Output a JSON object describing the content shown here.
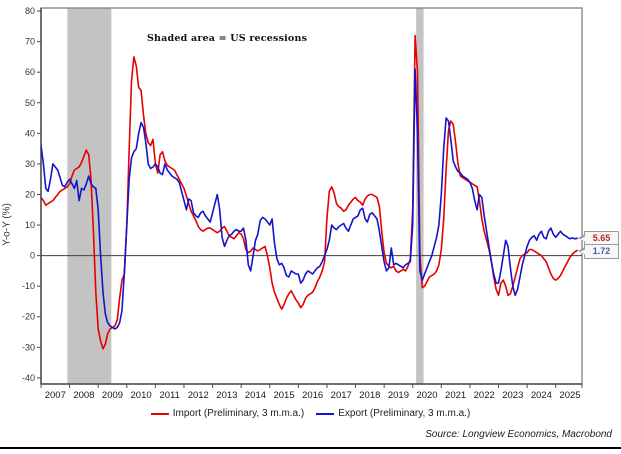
{
  "source": "Source: Longview Economics, Macrobond",
  "chart_data": {
    "type": "line",
    "title": "",
    "annotation": "Shaded area = US recessions",
    "ylabel": "Y-o-Y (%)",
    "x_start_year": 2007,
    "x_step": "monthly",
    "xlim": [
      2007.0,
      2025.92
    ],
    "ylim": [
      -42,
      81
    ],
    "yticks": [
      -40,
      -30,
      -20,
      -10,
      0,
      10,
      20,
      30,
      40,
      50,
      60,
      70,
      80
    ],
    "xtick_year_labels": [
      "2007",
      "2008",
      "2009",
      "2010",
      "2011",
      "2012",
      "2013",
      "2014",
      "2015",
      "2016",
      "2017",
      "2018",
      "2019",
      "2020",
      "2021",
      "2022",
      "2023",
      "2024",
      "2025"
    ],
    "grid": false,
    "legend_position": "bottom-center",
    "recession_bands": [
      [
        2007.92,
        2009.46
      ],
      [
        2020.12,
        2020.38
      ]
    ],
    "band_color": "#c3c3c3",
    "border_color": "#808080",
    "axis_color": "#4d4d4d",
    "zero_line_color": "#404040",
    "series": [
      {
        "name": "Import (Preliminary, 3 m.m.a.)",
        "color": "#e60000",
        "values": [
          19,
          18,
          16.5,
          17,
          17.5,
          18,
          19,
          20,
          21,
          21.5,
          22,
          22.5,
          23.5,
          26,
          28,
          28.5,
          29,
          30.5,
          32.5,
          34.5,
          33,
          25,
          8,
          -12,
          -24,
          -28,
          -30.5,
          -29,
          -25.5,
          -24,
          -23.5,
          -23,
          -21,
          -14,
          -8,
          -6,
          10,
          35,
          57,
          65,
          62,
          55,
          54,
          46,
          40,
          37,
          36,
          38,
          30,
          27,
          33,
          34,
          31,
          29.5,
          29,
          28.5,
          28,
          26.5,
          25,
          23.5,
          22,
          19.5,
          17,
          14.5,
          13,
          11.5,
          9.5,
          8.5,
          8,
          8.5,
          9,
          9,
          8.5,
          8,
          7.5,
          8,
          9,
          9.5,
          8,
          6.5,
          6,
          5.5,
          6.5,
          7.5,
          7,
          5.5,
          2,
          1,
          1.5,
          2.5,
          2,
          1.5,
          2,
          2.5,
          3,
          0,
          -4,
          -9,
          -12,
          -14,
          -16,
          -17.5,
          -16,
          -14,
          -12.5,
          -11.5,
          -13,
          -14.5,
          -15.5,
          -17,
          -16,
          -14,
          -13,
          -12.5,
          -12,
          -10.5,
          -8.5,
          -7,
          -5,
          -2,
          12,
          21,
          22.5,
          20.5,
          17,
          16,
          15.5,
          14.5,
          15,
          16.5,
          17.5,
          18.5,
          19,
          18,
          17.5,
          16.5,
          18.5,
          19.5,
          20,
          20,
          19.5,
          19,
          16,
          8,
          1,
          -2.5,
          -3.5,
          -4,
          -3.5,
          -5,
          -5.5,
          -5,
          -4.5,
          -5,
          -3.5,
          -1,
          15,
          72,
          60,
          0,
          -10.5,
          -10,
          -8.5,
          -7,
          -6.5,
          -6,
          -5,
          -3,
          2,
          12,
          28,
          41,
          44,
          43,
          37,
          30,
          26,
          25.5,
          25,
          24.5,
          24,
          23.5,
          23,
          22.5,
          18,
          12,
          8,
          5,
          2,
          -2,
          -7,
          -11,
          -13,
          -9,
          -8,
          -10,
          -13,
          -12.5,
          -10,
          -7,
          -4,
          -1,
          0,
          0.5,
          1,
          2,
          2,
          1.5,
          1,
          0.5,
          0,
          -1,
          -2,
          -4,
          -6,
          -7.5,
          -8,
          -7.5,
          -6.5,
          -5,
          -3.5,
          -2,
          -0.5,
          0.5,
          1.2,
          1.72
        ]
      },
      {
        "name": "Export (Preliminary, 3 m.m.a.)",
        "color": "#1414cc",
        "values": [
          36,
          30,
          22,
          21,
          25,
          30,
          29,
          28,
          25.5,
          23,
          22.5,
          24,
          25,
          23.5,
          22,
          24.5,
          18,
          22,
          21.5,
          23.5,
          26,
          23.5,
          22.5,
          22,
          15,
          0,
          -12,
          -19,
          -22,
          -23,
          -23.5,
          -24,
          -23.5,
          -22,
          -18,
          -5,
          10,
          25,
          32,
          34,
          35,
          40,
          43.5,
          42,
          37,
          30,
          28.5,
          29,
          30,
          29,
          27,
          26.5,
          30,
          28,
          27,
          26,
          25.5,
          25,
          24,
          21,
          18,
          15,
          18.5,
          18,
          14,
          13,
          12.5,
          14,
          14.5,
          13,
          12,
          11,
          14,
          17,
          20,
          15,
          6,
          3,
          5,
          6.5,
          7,
          8,
          8.5,
          8,
          8,
          9,
          5,
          -3,
          -5,
          0,
          5,
          7,
          11.5,
          12.5,
          12,
          11,
          10,
          12,
          4,
          -1,
          -3,
          -2.5,
          -4,
          -6.5,
          -7,
          -5,
          -5.5,
          -6,
          -6,
          -9,
          -8,
          -6,
          -5,
          -5.5,
          -6,
          -5,
          -4,
          -3.5,
          -2,
          0,
          2,
          5,
          10,
          9,
          8.5,
          9.5,
          10,
          10.5,
          9,
          8,
          10,
          12,
          12.5,
          13,
          15,
          15.5,
          12,
          11,
          13.5,
          14,
          13,
          12,
          8,
          3,
          -2,
          -5,
          -4,
          2.5,
          -3,
          -2.5,
          -3,
          -3.5,
          -4,
          -3,
          -2.5,
          -2,
          10,
          61,
          40,
          -5,
          -8,
          -6,
          -4,
          -2,
          0,
          3,
          6,
          10,
          20,
          35,
          45,
          44,
          38,
          31,
          29,
          27.5,
          27,
          26,
          25.5,
          25,
          24,
          22,
          18,
          15,
          20,
          19,
          13,
          8,
          3,
          -2,
          -6,
          -9,
          -9,
          -5,
          0,
          5,
          3,
          -4,
          -10,
          -13,
          -11,
          -7,
          -3,
          0,
          3,
          5,
          6,
          6.5,
          5,
          7,
          8,
          6,
          5.5,
          8,
          9,
          7,
          6,
          7,
          8,
          7,
          6.5,
          6,
          5.5,
          5.8,
          5.5,
          5.65
        ]
      }
    ],
    "end_labels": [
      {
        "text": "5.65",
        "value": 5.65,
        "color": "#c02020"
      },
      {
        "text": "1.72",
        "value": 1.72,
        "color": "#3a62a8"
      }
    ]
  }
}
